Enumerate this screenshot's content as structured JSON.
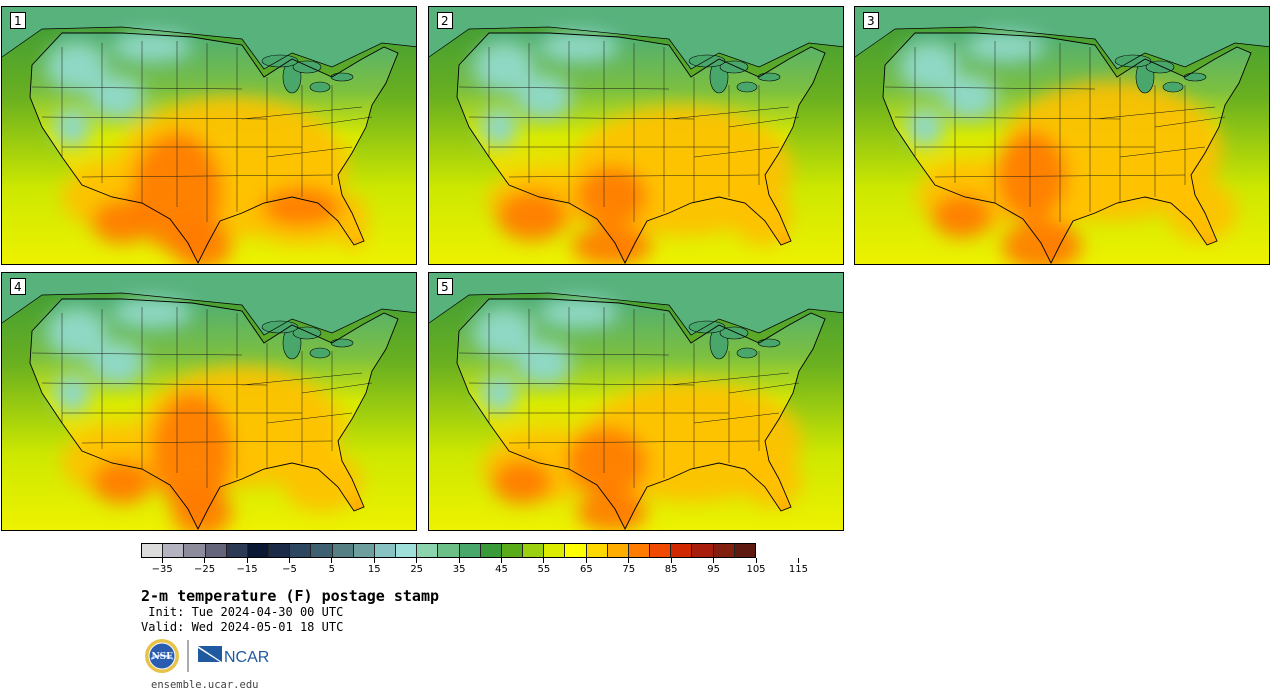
{
  "panels": [
    {
      "label": "1"
    },
    {
      "label": "2"
    },
    {
      "label": "3"
    },
    {
      "label": "4"
    },
    {
      "label": "5"
    }
  ],
  "colorbar": {
    "colors": [
      "#dcdcdc",
      "#b4b4c0",
      "#8c8c9c",
      "#64647a",
      "#2d3a55",
      "#0b1833",
      "#1c2c48",
      "#2e4760",
      "#3f6070",
      "#567f84",
      "#6e9e9e",
      "#88c2c2",
      "#a0e0da",
      "#8cd4ae",
      "#6cbf86",
      "#4aa76c",
      "#3a9a3a",
      "#5aab1a",
      "#9ad010",
      "#dcec00",
      "#ffff00",
      "#ffd800",
      "#ffae00",
      "#ff7c00",
      "#f04a00",
      "#d02800",
      "#a81e0c",
      "#822010",
      "#5e1a10"
    ],
    "tick_labels": [
      "−35",
      "−25",
      "−15",
      "−5",
      "5",
      "15",
      "25",
      "35",
      "45",
      "55",
      "65",
      "75",
      "85",
      "95",
      "105",
      "115"
    ]
  },
  "header": {
    "title": "2-m temperature (F) postage stamp",
    "init": " Init: Tue 2024-04-30 00 UTC",
    "valid": "Valid: Wed 2024-05-01 18 UTC"
  },
  "logos": {
    "nsf_text": "NSF",
    "ncar_text": "NCAR"
  },
  "footer": "ensemble.ucar.edu"
}
